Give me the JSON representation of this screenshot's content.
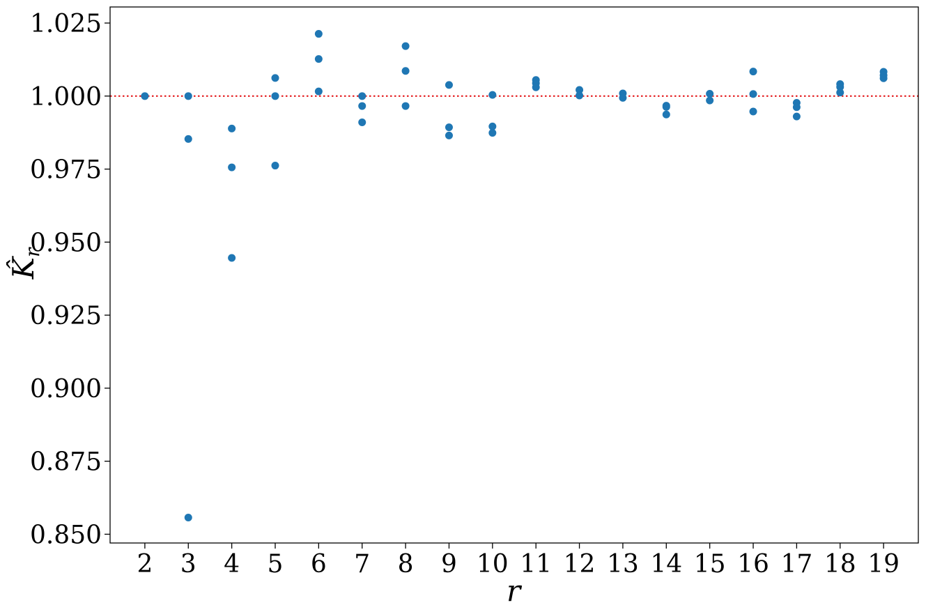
{
  "chart_data": {
    "type": "scatter",
    "xlabel": "r",
    "ylabel": "K̂",
    "ylabel_subscript": "r",
    "xlim": [
      1.2,
      19.8
    ],
    "ylim": [
      0.847,
      1.0305
    ],
    "x_ticks": [
      2,
      3,
      4,
      5,
      6,
      7,
      8,
      9,
      10,
      11,
      12,
      13,
      14,
      15,
      16,
      17,
      18,
      19
    ],
    "y_ticks": [
      0.85,
      0.875,
      0.9,
      0.925,
      0.95,
      0.975,
      1.0,
      1.025
    ],
    "y_tick_labels": [
      "0.850",
      "0.875",
      "0.900",
      "0.925",
      "0.950",
      "0.975",
      "1.000",
      "1.025"
    ],
    "grid": false,
    "marker_color": "#1f77b4",
    "reference_line": {
      "y": 1.0,
      "style": "dotted",
      "color": "#e41a1c"
    },
    "points": [
      [
        2,
        1.0
      ],
      [
        3,
        1.0
      ],
      [
        3,
        0.9853
      ],
      [
        3,
        0.8557
      ],
      [
        4,
        0.9889
      ],
      [
        4,
        0.9756
      ],
      [
        4,
        0.9446
      ],
      [
        5,
        1.0062
      ],
      [
        5,
        1.0
      ],
      [
        5,
        0.9762
      ],
      [
        6,
        1.0213
      ],
      [
        6,
        1.0127
      ],
      [
        6,
        1.0016
      ],
      [
        7,
        1.0
      ],
      [
        7,
        0.9966
      ],
      [
        7,
        0.991
      ],
      [
        8,
        1.0171
      ],
      [
        8,
        1.0086
      ],
      [
        8,
        0.9966
      ],
      [
        9,
        1.0038
      ],
      [
        9,
        0.9893
      ],
      [
        9,
        0.9865
      ],
      [
        10,
        1.0004
      ],
      [
        10,
        0.9896
      ],
      [
        10,
        0.9874
      ],
      [
        11,
        1.0055
      ],
      [
        11,
        1.0044
      ],
      [
        11,
        1.003
      ],
      [
        12,
        1.0021
      ],
      [
        12,
        1.0002
      ],
      [
        13,
        1.0009
      ],
      [
        13,
        0.9994
      ],
      [
        14,
        0.9967
      ],
      [
        14,
        0.9963
      ],
      [
        14,
        0.9937
      ],
      [
        15,
        1.0008
      ],
      [
        15,
        0.9985
      ],
      [
        16,
        1.0084
      ],
      [
        16,
        1.0007
      ],
      [
        16,
        0.9947
      ],
      [
        17,
        0.9977
      ],
      [
        17,
        0.9962
      ],
      [
        17,
        0.993
      ],
      [
        18,
        1.0041
      ],
      [
        18,
        1.0031
      ],
      [
        18,
        1.0012
      ],
      [
        19,
        1.0083
      ],
      [
        19,
        1.0071
      ],
      [
        19,
        1.0061
      ]
    ]
  }
}
